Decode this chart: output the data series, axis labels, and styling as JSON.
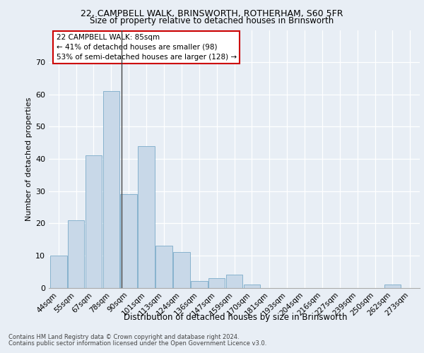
{
  "title1": "22, CAMPBELL WALK, BRINSWORTH, ROTHERHAM, S60 5FR",
  "title2": "Size of property relative to detached houses in Brinsworth",
  "xlabel": "Distribution of detached houses by size in Brinsworth",
  "ylabel": "Number of detached properties",
  "bar_labels": [
    "44sqm",
    "55sqm",
    "67sqm",
    "78sqm",
    "90sqm",
    "101sqm",
    "113sqm",
    "124sqm",
    "136sqm",
    "147sqm",
    "159sqm",
    "170sqm",
    "181sqm",
    "193sqm",
    "204sqm",
    "216sqm",
    "227sqm",
    "239sqm",
    "250sqm",
    "262sqm",
    "273sqm"
  ],
  "bar_values": [
    10,
    21,
    41,
    61,
    29,
    44,
    13,
    11,
    2,
    3,
    4,
    1,
    0,
    0,
    0,
    0,
    0,
    0,
    0,
    1,
    0
  ],
  "bar_color": "#c8d8e8",
  "bar_edge_color": "#7aaac8",
  "property_sqm": 85,
  "annotation_line1": "22 CAMPBELL WALK: 85sqm",
  "annotation_line2": "← 41% of detached houses are smaller (98)",
  "annotation_line3": "53% of semi-detached houses are larger (128) →",
  "annotation_box_color": "#ffffff",
  "annotation_box_edge": "#cc0000",
  "ylim": [
    0,
    80
  ],
  "yticks": [
    0,
    10,
    20,
    30,
    40,
    50,
    60,
    70
  ],
  "footer1": "Contains HM Land Registry data © Crown copyright and database right 2024.",
  "footer2": "Contains public sector information licensed under the Open Government Licence v3.0.",
  "background_color": "#e8eef5",
  "plot_bg_color": "#e8eef5",
  "grid_color": "#ffffff",
  "title1_fontsize": 9,
  "title2_fontsize": 8.5,
  "ylabel_fontsize": 8,
  "xlabel_fontsize": 8.5,
  "tick_fontsize": 7.5
}
